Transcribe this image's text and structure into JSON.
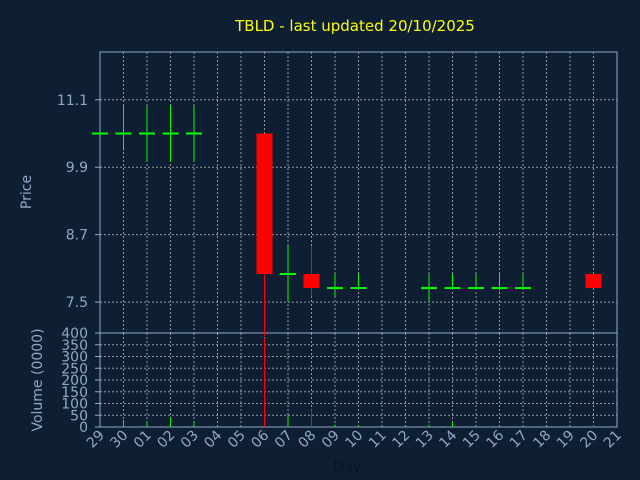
{
  "chart_data": {
    "type": "candlestick",
    "title": "TBLD - last updated 20/10/2025",
    "xlabel": "Day",
    "price_panel": {
      "ylabel": "Price",
      "yticks": [
        "11.1",
        "9.9",
        "8.7",
        "7.5"
      ],
      "ylim": [
        6.95,
        11.95
      ]
    },
    "volume_panel": {
      "ylabel": "Volume (0000)",
      "yticks": [
        "0",
        "50",
        "100",
        "150",
        "200",
        "250",
        "300",
        "350",
        "400"
      ],
      "ylim": [
        0,
        400
      ]
    },
    "x_ticks": [
      "29",
      "30",
      "01",
      "02",
      "03",
      "04",
      "05",
      "06",
      "07",
      "08",
      "09",
      "10",
      "11",
      "12",
      "13",
      "14",
      "15",
      "16",
      "17",
      "18",
      "19",
      "20",
      "21"
    ],
    "candles": [
      {
        "day": "29",
        "open": 10.5,
        "high": 10.5,
        "low": 10.5,
        "close": 10.5,
        "volume": 0
      },
      {
        "day": "30",
        "open": 10.5,
        "high": 11.0,
        "low": 10.2,
        "close": 10.5,
        "volume": 30
      },
      {
        "day": "01",
        "open": 10.5,
        "high": 11.0,
        "low": 10.0,
        "close": 10.5,
        "volume": 20
      },
      {
        "day": "02",
        "open": 10.5,
        "high": 11.0,
        "low": 10.0,
        "close": 10.5,
        "volume": 40
      },
      {
        "day": "03",
        "open": 10.5,
        "high": 11.0,
        "low": 10.0,
        "close": 10.5,
        "volume": 25
      },
      {
        "day": "06",
        "open": 10.5,
        "high": 10.5,
        "low": 6.9,
        "close": 8.0,
        "volume": 380
      },
      {
        "day": "07",
        "open": 8.0,
        "high": 8.5,
        "low": 7.5,
        "close": 8.0,
        "volume": 50
      },
      {
        "day": "08",
        "open": 8.0,
        "high": 8.5,
        "low": 7.6,
        "close": 7.75,
        "volume": 75
      },
      {
        "day": "09",
        "open": 7.75,
        "high": 8.0,
        "low": 7.6,
        "close": 7.75,
        "volume": 10
      },
      {
        "day": "10",
        "open": 7.75,
        "high": 8.0,
        "low": 7.75,
        "close": 7.75,
        "volume": 5
      },
      {
        "day": "13",
        "open": 7.75,
        "high": 8.0,
        "low": 7.5,
        "close": 7.75,
        "volume": 10
      },
      {
        "day": "14",
        "open": 7.75,
        "high": 8.0,
        "low": 7.75,
        "close": 7.75,
        "volume": 20
      },
      {
        "day": "15",
        "open": 7.75,
        "high": 8.0,
        "low": 7.75,
        "close": 7.75,
        "volume": 5
      },
      {
        "day": "16",
        "open": 7.75,
        "high": 8.0,
        "low": 7.7,
        "close": 7.75,
        "volume": 5
      },
      {
        "day": "17",
        "open": 7.75,
        "high": 8.0,
        "low": 7.75,
        "close": 7.75,
        "volume": 5
      },
      {
        "day": "20",
        "open": 8.0,
        "high": 8.0,
        "low": 7.75,
        "close": 7.75,
        "volume": 5
      }
    ],
    "grid": true,
    "colors": {
      "background": "#0f1f33",
      "title": "#ffff00",
      "axis_text": "#8fa8c8",
      "grid": "#ffffff",
      "up": "#00ff00",
      "down": "#ff0000",
      "xlabel": "#0b1320"
    }
  }
}
